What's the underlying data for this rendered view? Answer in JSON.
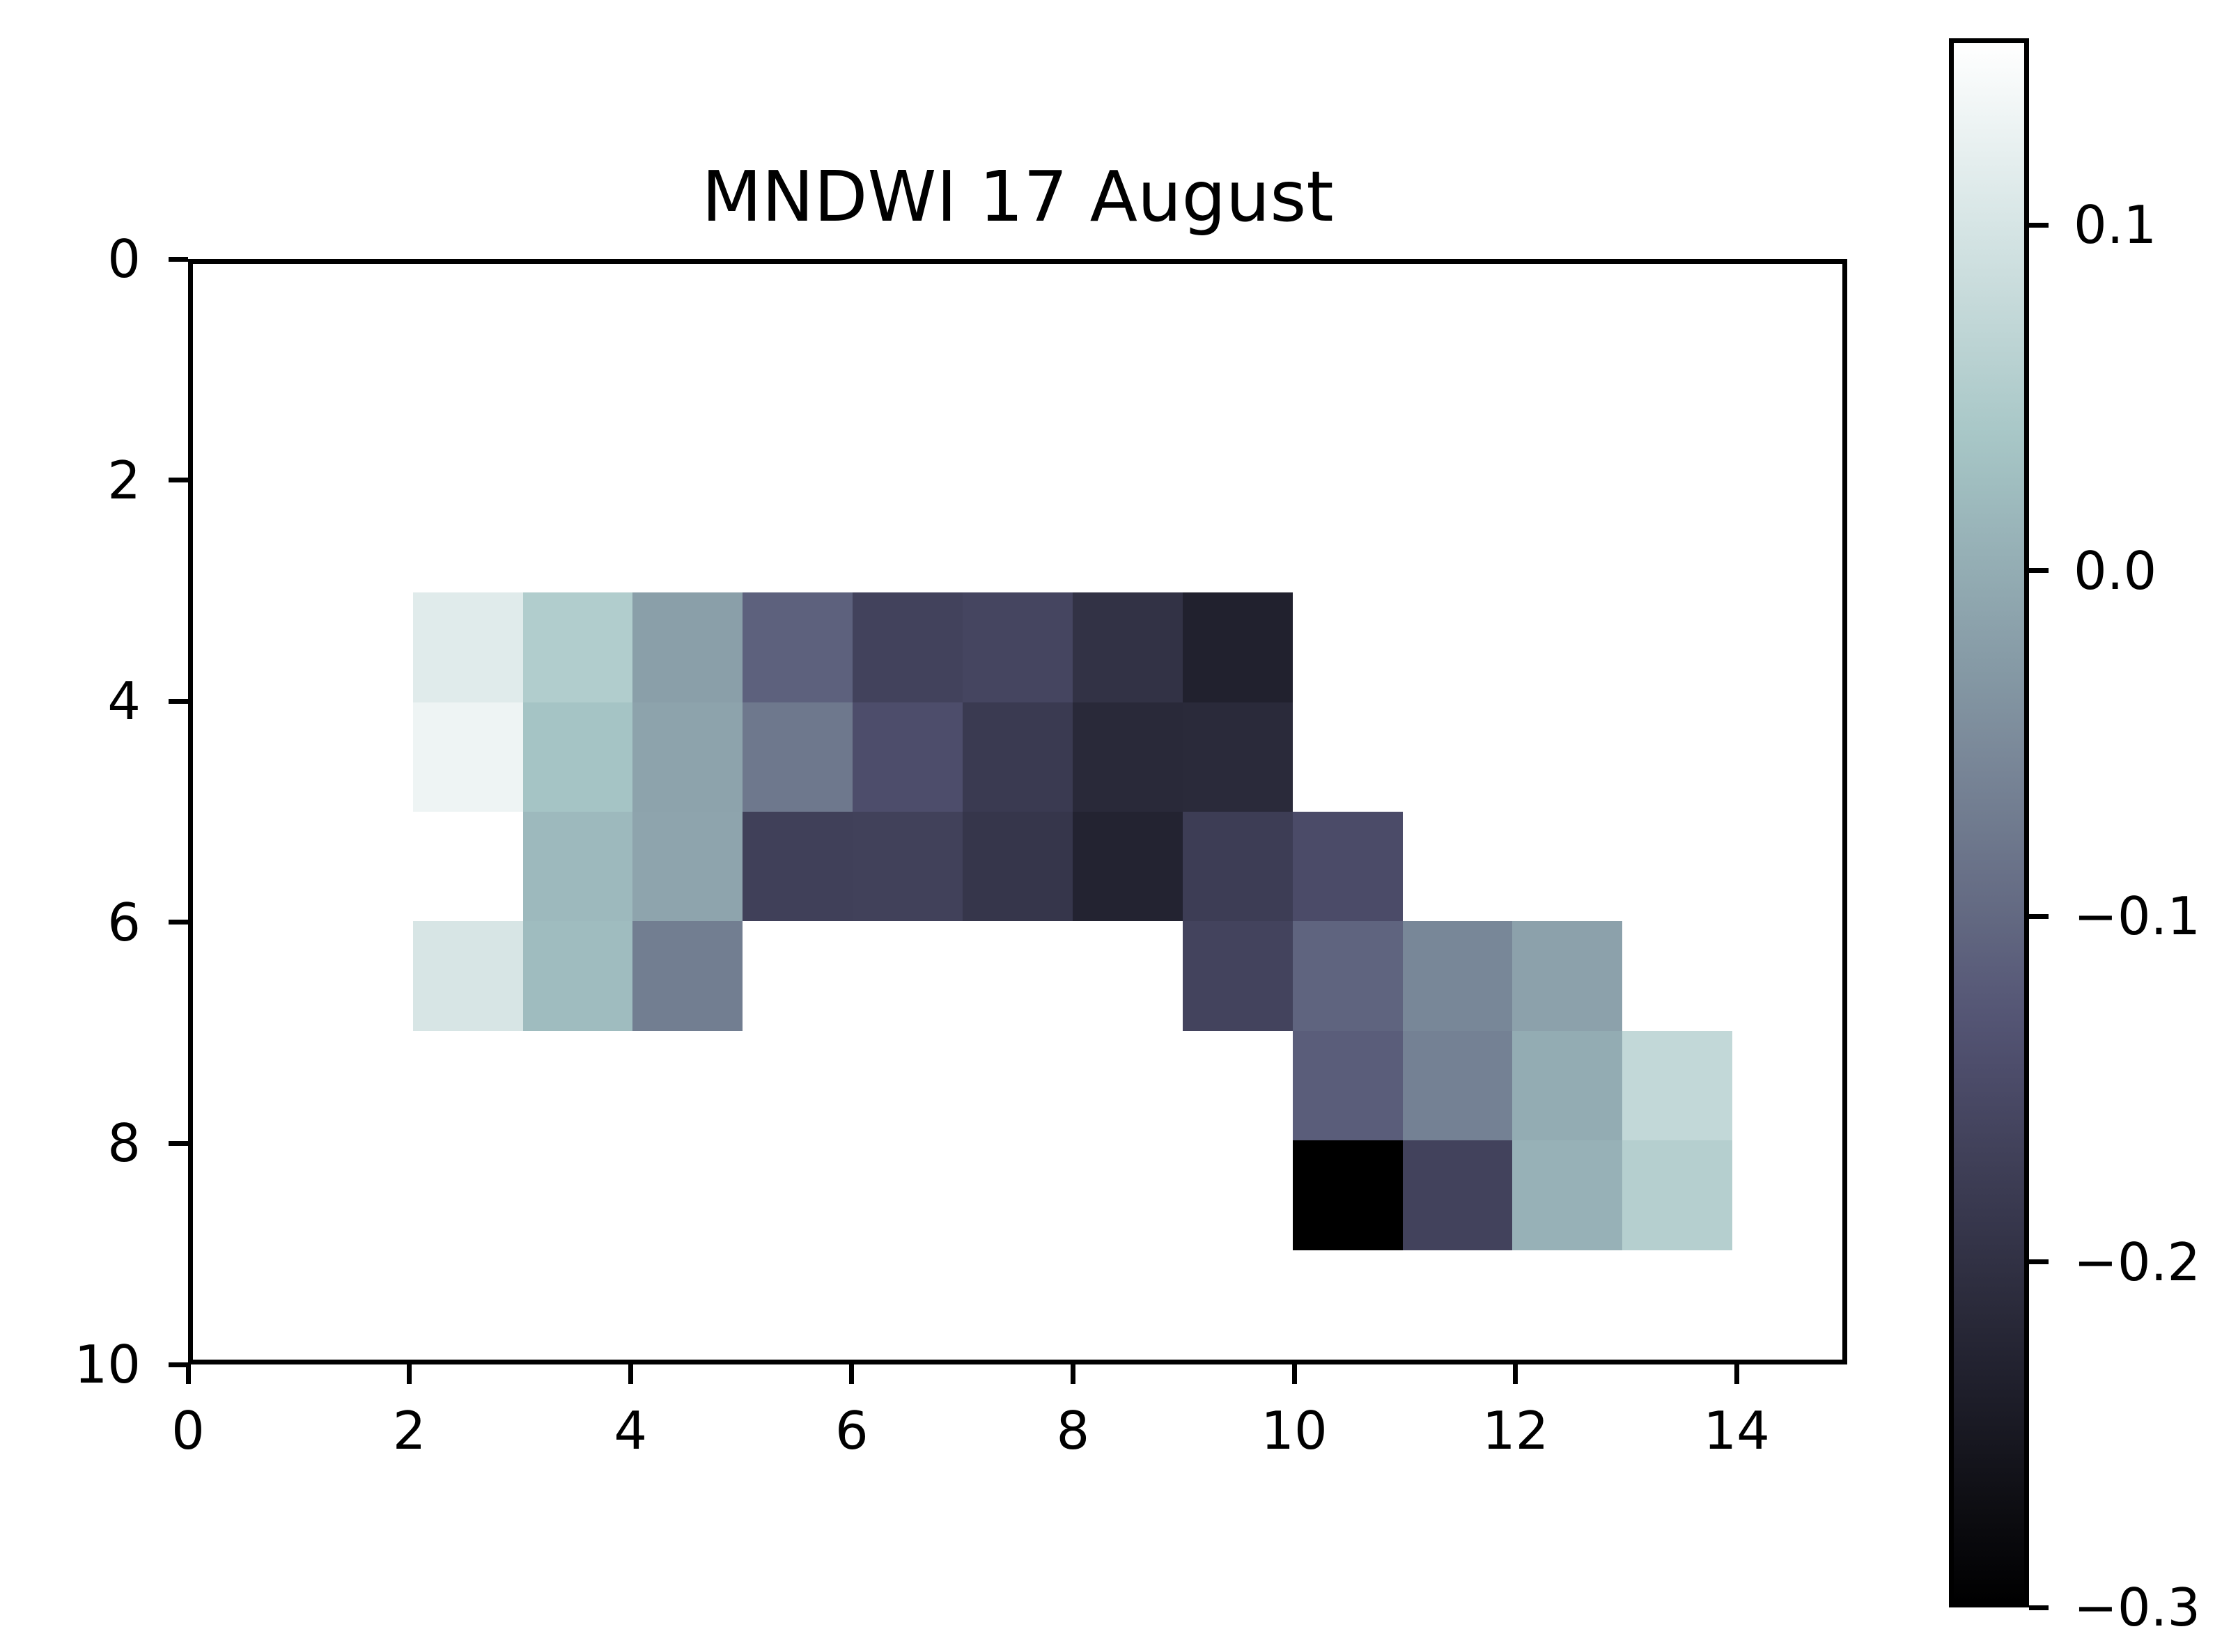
{
  "chart_data": {
    "type": "heatmap",
    "title": "MNDWI 17 August",
    "colormap": "bone",
    "background_color": "#ffffff",
    "spine_color": "#000000",
    "vmin": -0.3,
    "vmax": 0.154,
    "xlim": [
      0,
      15
    ],
    "ylim": [
      0,
      10
    ],
    "y_axis_inverted": true,
    "grid": false,
    "x_ticks": [
      0,
      2,
      4,
      6,
      8,
      10,
      12,
      14
    ],
    "y_ticks": [
      0,
      2,
      4,
      6,
      8,
      10
    ],
    "colorbar": {
      "position": "right",
      "ticks": [
        {
          "value": 0.1,
          "label": "0.1"
        },
        {
          "value": 0.0,
          "label": "0.0"
        },
        {
          "value": -0.1,
          "label": "−0.1"
        },
        {
          "value": -0.2,
          "label": "−0.2"
        },
        {
          "value": -0.3,
          "label": "−0.3"
        }
      ]
    },
    "cells": [
      {
        "x": 2,
        "y": 3,
        "value": 0.113
      },
      {
        "x": 3,
        "y": 3,
        "value": 0.052
      },
      {
        "x": 4,
        "y": 3,
        "value": -0.02
      },
      {
        "x": 5,
        "y": 3,
        "value": -0.111
      },
      {
        "x": 6,
        "y": 3,
        "value": -0.166
      },
      {
        "x": 7,
        "y": 3,
        "value": -0.16
      },
      {
        "x": 8,
        "y": 3,
        "value": -0.199
      },
      {
        "x": 9,
        "y": 3,
        "value": -0.233
      },
      {
        "x": 2,
        "y": 4,
        "value": 0.132
      },
      {
        "x": 3,
        "y": 4,
        "value": 0.035
      },
      {
        "x": 4,
        "y": 4,
        "value": -0.014
      },
      {
        "x": 5,
        "y": 4,
        "value": -0.077
      },
      {
        "x": 6,
        "y": 4,
        "value": -0.144
      },
      {
        "x": 7,
        "y": 4,
        "value": -0.182
      },
      {
        "x": 8,
        "y": 4,
        "value": -0.216
      },
      {
        "x": 9,
        "y": 4,
        "value": -0.215
      },
      {
        "x": 3,
        "y": 5,
        "value": 0.019
      },
      {
        "x": 4,
        "y": 5,
        "value": -0.012
      },
      {
        "x": 5,
        "y": 5,
        "value": -0.17
      },
      {
        "x": 6,
        "y": 5,
        "value": -0.168
      },
      {
        "x": 7,
        "y": 5,
        "value": -0.19
      },
      {
        "x": 8,
        "y": 5,
        "value": -0.229
      },
      {
        "x": 9,
        "y": 5,
        "value": -0.176
      },
      {
        "x": 10,
        "y": 5,
        "value": -0.148
      },
      {
        "x": 2,
        "y": 6,
        "value": 0.102
      },
      {
        "x": 3,
        "y": 6,
        "value": 0.023
      },
      {
        "x": 4,
        "y": 6,
        "value": -0.069
      },
      {
        "x": 9,
        "y": 6,
        "value": -0.164
      },
      {
        "x": 10,
        "y": 6,
        "value": -0.107
      },
      {
        "x": 11,
        "y": 6,
        "value": -0.055
      },
      {
        "x": 12,
        "y": 6,
        "value": -0.016
      },
      {
        "x": 10,
        "y": 7,
        "value": -0.117
      },
      {
        "x": 11,
        "y": 7,
        "value": -0.064
      },
      {
        "x": 12,
        "y": 7,
        "value": 0.0
      },
      {
        "x": 13,
        "y": 7,
        "value": 0.075
      },
      {
        "x": 10,
        "y": 8,
        "value": -0.3
      },
      {
        "x": 11,
        "y": 8,
        "value": -0.166
      },
      {
        "x": 12,
        "y": 8,
        "value": 0.007
      },
      {
        "x": 13,
        "y": 8,
        "value": 0.057
      }
    ]
  }
}
